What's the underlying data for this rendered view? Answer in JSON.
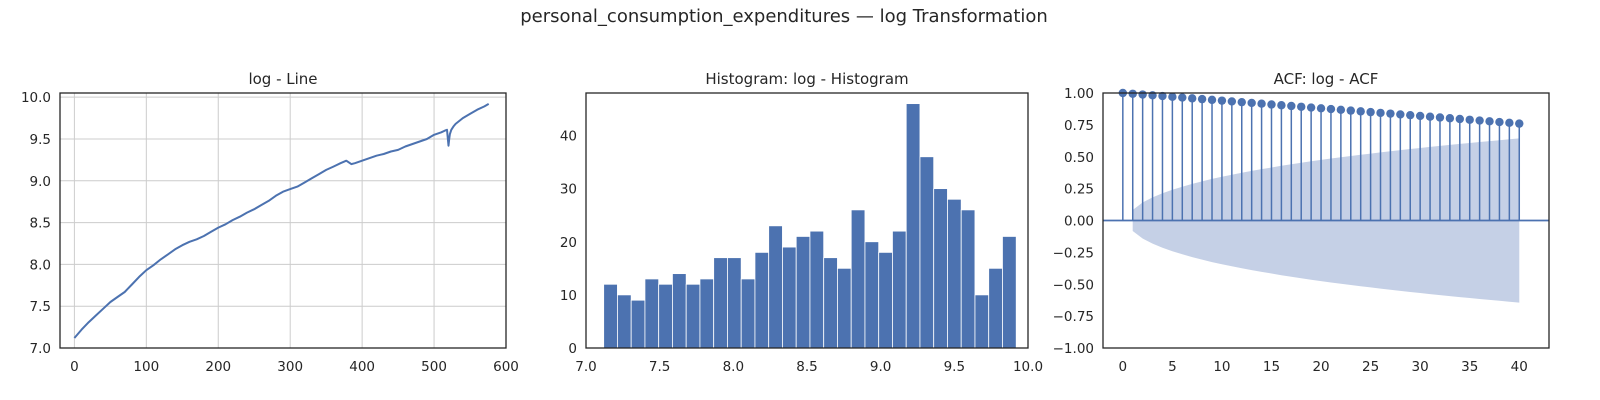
{
  "figure": {
    "suptitle": "personal_consumption_expenditures — log Transformation"
  },
  "chart_data": [
    {
      "type": "line",
      "title": "log - Line",
      "xlabel": "",
      "ylabel": "",
      "xlim": [
        -20,
        600
      ],
      "ylim": [
        7.0,
        10.05
      ],
      "xticks": [
        0,
        100,
        200,
        300,
        400,
        500,
        600
      ],
      "yticks": [
        7.0,
        7.5,
        8.0,
        8.5,
        9.0,
        9.5,
        10.0
      ],
      "xtick_labels": [
        "0",
        "100",
        "200",
        "300",
        "400",
        "500",
        "600"
      ],
      "ytick_labels": [
        "7.0",
        "7.5",
        "8.0",
        "8.5",
        "9.0",
        "9.5",
        "10.0"
      ],
      "grid": true,
      "color": "#4c72b0",
      "series": [
        {
          "x": [
            0,
            10,
            20,
            30,
            40,
            50,
            60,
            70,
            80,
            90,
            100,
            110,
            120,
            130,
            140,
            150,
            160,
            170,
            180,
            190,
            200,
            210,
            220,
            230,
            240,
            250,
            260,
            270,
            280,
            290,
            300,
            310,
            320,
            330,
            340,
            350,
            360,
            370,
            378,
            385,
            390,
            400,
            410,
            420,
            430,
            440,
            450,
            460,
            470,
            480,
            490,
            500,
            510,
            515,
            518,
            520,
            521,
            522,
            524,
            527,
            530,
            540,
            550,
            560,
            570,
            576
          ],
          "values": [
            7.12,
            7.22,
            7.31,
            7.39,
            7.47,
            7.55,
            7.61,
            7.67,
            7.76,
            7.85,
            7.93,
            7.99,
            8.06,
            8.12,
            8.18,
            8.23,
            8.27,
            8.3,
            8.34,
            8.39,
            8.44,
            8.48,
            8.53,
            8.57,
            8.62,
            8.66,
            8.71,
            8.76,
            8.82,
            8.87,
            8.9,
            8.93,
            8.98,
            9.03,
            9.08,
            9.13,
            9.17,
            9.21,
            9.24,
            9.2,
            9.21,
            9.24,
            9.27,
            9.3,
            9.32,
            9.35,
            9.37,
            9.41,
            9.44,
            9.47,
            9.5,
            9.55,
            9.58,
            9.6,
            9.61,
            9.42,
            9.5,
            9.56,
            9.61,
            9.65,
            9.68,
            9.75,
            9.8,
            9.85,
            9.89,
            9.92
          ]
        }
      ]
    },
    {
      "type": "bar",
      "title": "Histogram: log - Histogram",
      "xlabel": "",
      "ylabel": "",
      "xlim": [
        7.0,
        10.0
      ],
      "ylim": [
        0,
        48
      ],
      "xticks": [
        7.0,
        7.5,
        8.0,
        8.5,
        9.0,
        9.5,
        10.0
      ],
      "yticks": [
        0,
        10,
        20,
        30,
        40
      ],
      "xtick_labels": [
        "7.0",
        "7.5",
        "8.0",
        "8.5",
        "9.0",
        "9.5",
        "10.0"
      ],
      "ytick_labels": [
        "0",
        "10",
        "20",
        "30",
        "40"
      ],
      "grid": false,
      "color": "#4c72b0",
      "bin_start": 7.12,
      "bin_end": 9.92,
      "values": [
        12,
        10,
        9,
        13,
        12,
        14,
        12,
        13,
        17,
        17,
        13,
        18,
        23,
        19,
        21,
        22,
        17,
        15,
        26,
        20,
        18,
        22,
        46,
        36,
        30,
        28,
        26,
        10,
        15,
        21
      ]
    },
    {
      "type": "scatter",
      "subtype": "acf_stem",
      "title": "ACF: log - ACF",
      "xlabel": "",
      "ylabel": "",
      "xlim": [
        -2,
        43
      ],
      "ylim": [
        -1.0,
        1.0
      ],
      "xticks": [
        0,
        5,
        10,
        15,
        20,
        25,
        30,
        35,
        40
      ],
      "yticks": [
        -1.0,
        -0.75,
        -0.5,
        -0.25,
        0.0,
        0.25,
        0.5,
        0.75,
        1.0
      ],
      "xtick_labels": [
        "0",
        "5",
        "10",
        "15",
        "20",
        "25",
        "30",
        "35",
        "40"
      ],
      "ytick_labels": [
        "−1.00",
        "−0.75",
        "−0.50",
        "−0.25",
        "0.00",
        "0.25",
        "0.50",
        "0.75",
        "1.00"
      ],
      "grid": false,
      "color": "#4c72b0",
      "band_color": "#c5d0e6",
      "lags": [
        0,
        1,
        2,
        3,
        4,
        5,
        6,
        7,
        8,
        9,
        10,
        11,
        12,
        13,
        14,
        15,
        16,
        17,
        18,
        19,
        20,
        21,
        22,
        23,
        24,
        25,
        26,
        27,
        28,
        29,
        30,
        31,
        32,
        33,
        34,
        35,
        36,
        37,
        38,
        39,
        40
      ],
      "values": [
        1.0,
        0.994,
        0.988,
        0.982,
        0.976,
        0.97,
        0.964,
        0.958,
        0.952,
        0.946,
        0.94,
        0.934,
        0.928,
        0.922,
        0.916,
        0.91,
        0.904,
        0.898,
        0.892,
        0.886,
        0.88,
        0.874,
        0.868,
        0.862,
        0.856,
        0.85,
        0.844,
        0.838,
        0.832,
        0.826,
        0.82,
        0.814,
        0.808,
        0.802,
        0.796,
        0.79,
        0.784,
        0.778,
        0.772,
        0.766,
        0.76
      ],
      "confint_upper": [
        0.0,
        0.082,
        0.141,
        0.181,
        0.213,
        0.241,
        0.265,
        0.287,
        0.307,
        0.326,
        0.343,
        0.359,
        0.375,
        0.389,
        0.403,
        0.416,
        0.429,
        0.441,
        0.453,
        0.464,
        0.475,
        0.486,
        0.496,
        0.506,
        0.516,
        0.525,
        0.534,
        0.543,
        0.552,
        0.561,
        0.569,
        0.577,
        0.585,
        0.593,
        0.601,
        0.608,
        0.616,
        0.623,
        0.63,
        0.637,
        0.644
      ]
    }
  ]
}
